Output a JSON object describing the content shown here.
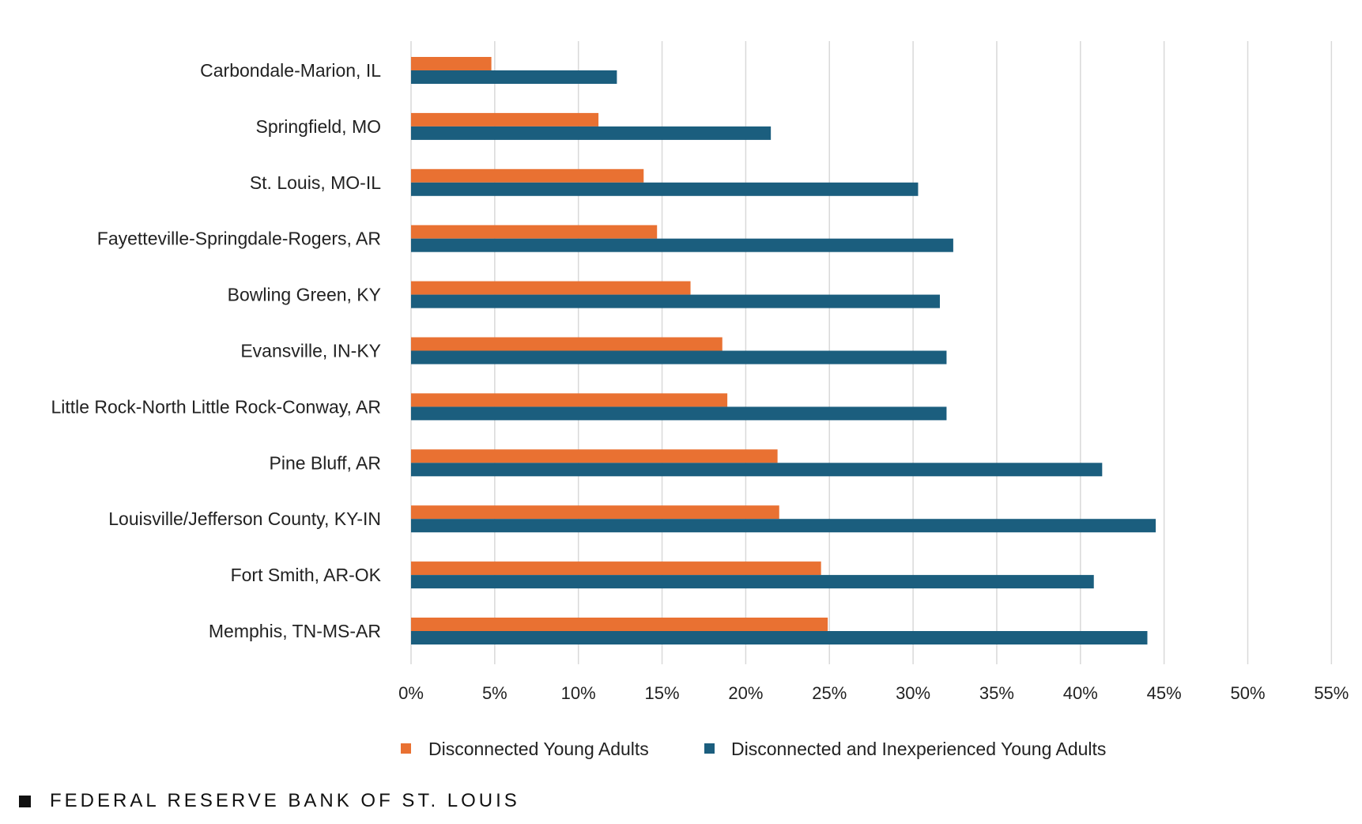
{
  "chart_data": {
    "type": "bar",
    "orientation": "horizontal",
    "categories": [
      "Carbondale-Marion, IL",
      "Springfield, MO",
      "St. Louis, MO-IL",
      "Fayetteville-Springdale-Rogers, AR",
      "Bowling Green, KY",
      "Evansville, IN-KY",
      "Little Rock-North Little Rock-Conway, AR",
      "Pine Bluff, AR",
      "Louisville/Jefferson County, KY-IN",
      "Fort Smith, AR-OK",
      "Memphis, TN-MS-AR"
    ],
    "series": [
      {
        "name": "Disconnected Young Adults",
        "color": "#E97132",
        "values": [
          4.8,
          11.2,
          13.9,
          14.7,
          16.7,
          18.6,
          18.9,
          21.9,
          22.0,
          24.5,
          24.9
        ]
      },
      {
        "name": "Disconnected and Inexperienced Young Adults",
        "color": "#1B5E7E",
        "values": [
          12.3,
          21.5,
          30.3,
          32.4,
          31.6,
          32.0,
          32.0,
          41.3,
          44.5,
          40.8,
          44.0
        ]
      }
    ],
    "x_ticks": [
      "0%",
      "5%",
      "10%",
      "15%",
      "20%",
      "25%",
      "30%",
      "35%",
      "40%",
      "45%",
      "50%",
      "55%"
    ],
    "xlim": [
      0,
      55
    ],
    "grid": true,
    "legend_position": "bottom",
    "title": "",
    "xlabel": "",
    "ylabel": ""
  },
  "footer": {
    "source": "FEDERAL RESERVE BANK OF ST. LOUIS"
  }
}
